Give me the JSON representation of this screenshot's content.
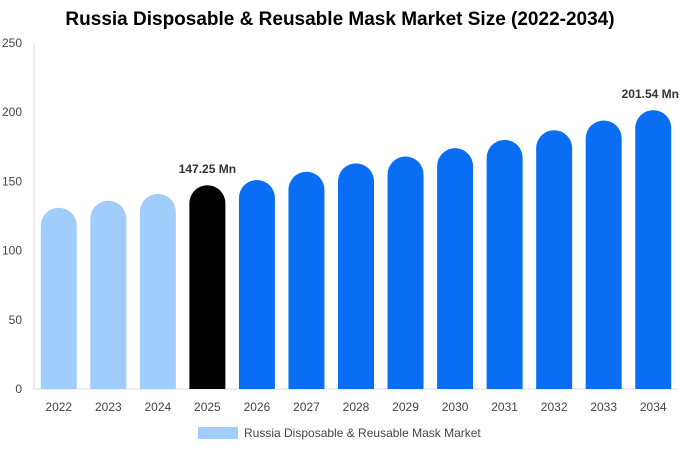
{
  "chart_data": {
    "type": "bar",
    "title": "Russia Disposable & Reusable Mask Market Size (2022-2034)",
    "categories": [
      "2022",
      "2023",
      "2024",
      "2025",
      "2026",
      "2027",
      "2028",
      "2029",
      "2030",
      "2031",
      "2032",
      "2033",
      "2034"
    ],
    "series": [
      {
        "name": "Russia Disposable & Reusable Mask Market",
        "values": [
          131,
          136,
          141,
          147.25,
          151,
          157,
          163,
          168,
          174,
          180,
          187,
          194,
          201.54
        ]
      }
    ],
    "ylim": [
      0,
      250
    ],
    "yticks": [
      0,
      50,
      100,
      150,
      200,
      250
    ],
    "annotations": [
      {
        "category": "2025",
        "text": "147.25 Mn"
      },
      {
        "category": "2034",
        "text": "201.54 Mn"
      }
    ],
    "colors": {
      "historical": "#a0cdfc",
      "current": "#000000",
      "forecast": "#0a6ef5"
    },
    "legend_color": "#a0cdfc",
    "legend_placement": "bottom",
    "grid": false
  }
}
